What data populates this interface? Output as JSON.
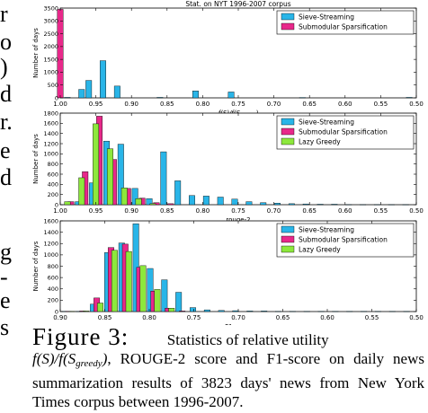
{
  "left_fragments": [
    "r",
    "o",
    ")",
    "d",
    "r.",
    "e",
    "d",
    "g",
    "-",
    "e",
    "s"
  ],
  "caption": {
    "label": "Figure 3:",
    "text_1": "Statistics of relative utility",
    "math_1_pre": "f(S)/f(S",
    "math_1_sub": "greedy",
    "math_1_post": ")",
    "text_2": ", ROUGE-2 score and F1-score on daily news summarization results of 3823 days' news from New York Times corpus between 1996-2007."
  },
  "chart_data": [
    {
      "type": "bar",
      "title": "Stat. on NYT 1996-2007 corpus",
      "xlabel": "f(S)/f(S_greedy)",
      "ylabel": "Number of days",
      "xlim": [
        1.0,
        0.5
      ],
      "ylim": [
        0,
        3500
      ],
      "xticks": [
        "1.00",
        "0.95",
        "0.90",
        "0.85",
        "0.80",
        "0.75",
        "0.70",
        "0.65",
        "0.60",
        "0.55",
        "0.50"
      ],
      "yticks": [
        "0",
        "500",
        "1000",
        "1500",
        "2000",
        "2500",
        "3000",
        "3500"
      ],
      "legend": "top-right",
      "series": [
        {
          "name": "Sieve-Streaming",
          "color": "#29b5e8",
          "x": [
            0.99,
            0.97,
            0.96,
            0.94,
            0.92,
            0.86,
            0.81,
            0.76,
            0.66,
            0.51
          ],
          "values": [
            20,
            330,
            680,
            1450,
            460,
            20,
            270,
            230,
            15,
            20
          ]
        },
        {
          "name": "Submodular Sparsification",
          "color": "#e8288a",
          "x": [
            1.0
          ],
          "values": [
            3450
          ]
        }
      ]
    },
    {
      "type": "bar",
      "title": "",
      "xlabel": "rouge-2",
      "ylabel": "Number of days",
      "xlim": [
        1.0,
        0.5
      ],
      "ylim": [
        0,
        1800
      ],
      "xticks": [
        "1.00",
        "0.95",
        "0.90",
        "0.85",
        "0.80",
        "0.75",
        "0.70",
        "0.65",
        "0.60",
        "0.55",
        "0.50"
      ],
      "yticks": [
        "0",
        "200",
        "400",
        "600",
        "800",
        "1000",
        "1200",
        "1400",
        "1600",
        "1800"
      ],
      "legend": "top-right",
      "series": [
        {
          "name": "Sieve-Streaming",
          "color": "#29b5e8",
          "x": [
            0.975,
            0.955,
            0.935,
            0.915,
            0.895,
            0.875,
            0.855,
            0.835,
            0.815,
            0.795,
            0.775,
            0.755,
            0.735,
            0.715,
            0.695,
            0.675,
            0.655,
            0.635,
            0.615,
            0.595,
            0.575,
            0.555,
            0.535,
            0.515
          ],
          "values": [
            60,
            430,
            1250,
            1190,
            320,
            120,
            1040,
            470,
            180,
            170,
            150,
            110,
            60,
            40,
            30,
            20,
            15,
            10,
            10,
            5,
            5,
            5,
            5,
            5
          ]
        },
        {
          "name": "Submodular Sparsification",
          "color": "#e8288a",
          "x": [
            0.985,
            0.965,
            0.945,
            0.925,
            0.905,
            0.885,
            0.865,
            0.845
          ],
          "values": [
            60,
            650,
            1740,
            890,
            320,
            130,
            40,
            20
          ]
        },
        {
          "name": "Lazy Greedy",
          "color": "#8de83c",
          "x": [
            0.99,
            0.97,
            0.95,
            0.93,
            0.91,
            0.89,
            0.87
          ],
          "values": [
            60,
            530,
            1590,
            1100,
            330,
            120,
            20
          ]
        }
      ]
    },
    {
      "type": "bar",
      "title": "",
      "xlabel": "F1-score",
      "ylabel": "Number of days",
      "xlim": [
        0.9,
        0.5
      ],
      "ylim": [
        0,
        1600
      ],
      "xticks": [
        "0.90",
        "0.85",
        "0.80",
        "0.75",
        "0.70",
        "0.65",
        "0.60",
        "0.55",
        "0.50"
      ],
      "yticks": [
        "0",
        "200",
        "400",
        "600",
        "800",
        "1000",
        "1200",
        "1400",
        "1600"
      ],
      "legend": "top-right",
      "series": [
        {
          "name": "Sieve-Streaming",
          "color": "#29b5e8",
          "x": [
            0.895,
            0.879,
            0.863,
            0.847,
            0.831,
            0.815,
            0.799,
            0.783,
            0.767,
            0.751,
            0.735,
            0.719,
            0.703,
            0.687,
            0.671,
            0.655,
            0.639,
            0.623,
            0.607,
            0.591,
            0.575,
            0.559,
            0.543,
            0.527,
            0.511
          ],
          "values": [
            5,
            5,
            130,
            1040,
            1210,
            1550,
            760,
            560,
            340,
            70,
            30,
            20,
            15,
            10,
            10,
            5,
            5,
            5,
            5,
            5,
            5,
            5,
            5,
            5,
            5
          ]
        },
        {
          "name": "Submodular Sparsification",
          "color": "#e8288a",
          "x": [
            0.891,
            0.875,
            0.859,
            0.843,
            0.827,
            0.811,
            0.795,
            0.779,
            0.763
          ],
          "values": [
            5,
            10,
            240,
            1130,
            1190,
            780,
            360,
            60,
            10
          ]
        },
        {
          "name": "Lazy Greedy",
          "color": "#8de83c",
          "x": [
            0.887,
            0.871,
            0.855,
            0.839,
            0.823,
            0.807,
            0.791,
            0.775
          ],
          "values": [
            5,
            10,
            150,
            1080,
            1060,
            810,
            390,
            60
          ]
        }
      ]
    }
  ]
}
